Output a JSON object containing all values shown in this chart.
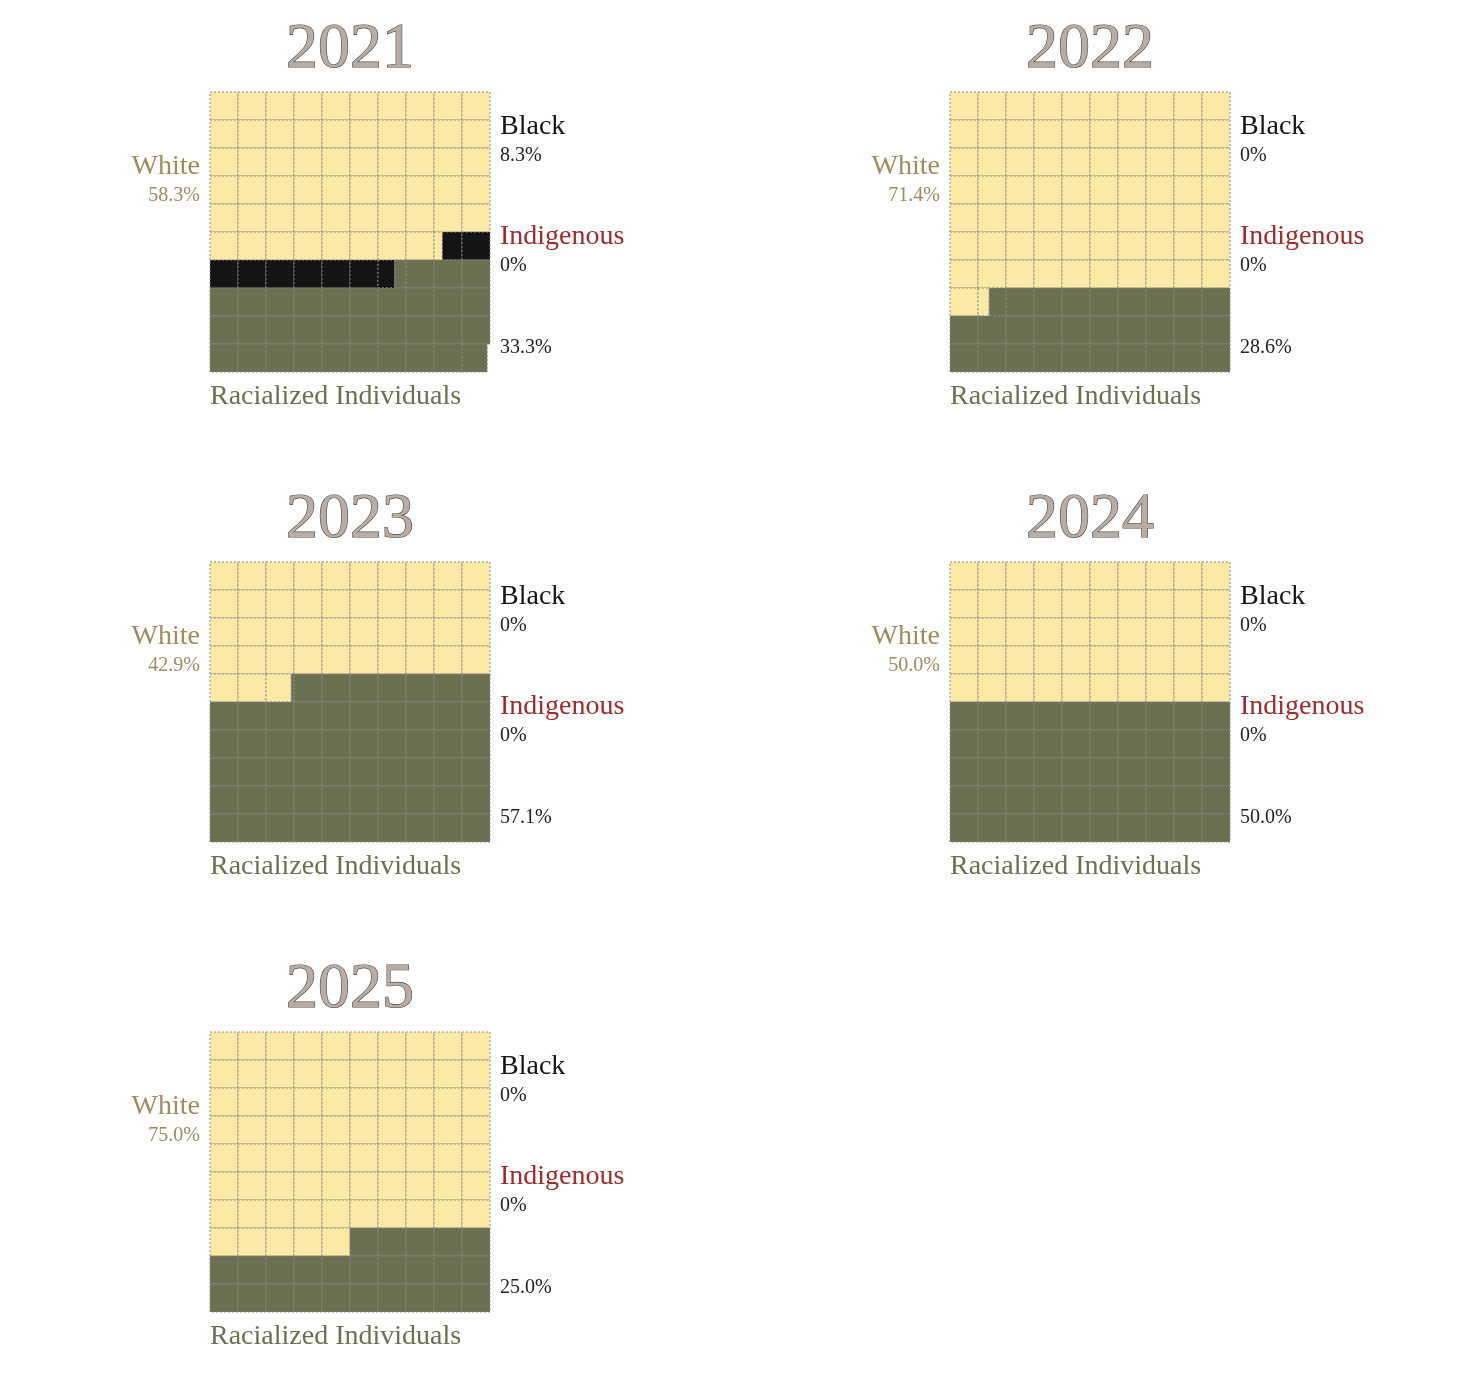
{
  "chart_data": [
    {
      "type": "other",
      "title": "2021",
      "categories": [
        "White",
        "Black",
        "Indigenous",
        "Racialized Individuals"
      ],
      "values": [
        58.3,
        8.3,
        0,
        33.3
      ],
      "value_labels": [
        "58.3%",
        "8.3%",
        "0%",
        "33.3%"
      ],
      "colors": [
        "#fde9a6",
        "#141414",
        "#a32a2a",
        "#6b7150"
      ]
    },
    {
      "type": "other",
      "title": "2022",
      "categories": [
        "White",
        "Black",
        "Indigenous",
        "Racialized Individuals"
      ],
      "values": [
        71.4,
        0,
        0,
        28.6
      ],
      "value_labels": [
        "71.4%",
        "0%",
        "0%",
        "28.6%"
      ],
      "colors": [
        "#fde9a6",
        "#141414",
        "#a32a2a",
        "#6b7150"
      ]
    },
    {
      "type": "other",
      "title": "2023",
      "categories": [
        "White",
        "Black",
        "Indigenous",
        "Racialized Individuals"
      ],
      "values": [
        42.9,
        0,
        0,
        57.1
      ],
      "value_labels": [
        "42.9%",
        "0%",
        "0%",
        "57.1%"
      ],
      "colors": [
        "#fde9a6",
        "#141414",
        "#a32a2a",
        "#6b7150"
      ]
    },
    {
      "type": "other",
      "title": "2024",
      "categories": [
        "White",
        "Black",
        "Indigenous",
        "Racialized Individuals"
      ],
      "values": [
        50.0,
        0,
        0,
        50.0
      ],
      "value_labels": [
        "50.0%",
        "0%",
        "0%",
        "50.0%"
      ],
      "colors": [
        "#fde9a6",
        "#141414",
        "#a32a2a",
        "#6b7150"
      ]
    },
    {
      "type": "other",
      "title": "2025",
      "categories": [
        "White",
        "Black",
        "Indigenous",
        "Racialized Individuals"
      ],
      "values": [
        75.0,
        0,
        0,
        25.0
      ],
      "value_labels": [
        "75.0%",
        "0%",
        "0%",
        "25.0%"
      ],
      "colors": [
        "#fde9a6",
        "#141414",
        "#a32a2a",
        "#6b7150"
      ]
    }
  ]
}
